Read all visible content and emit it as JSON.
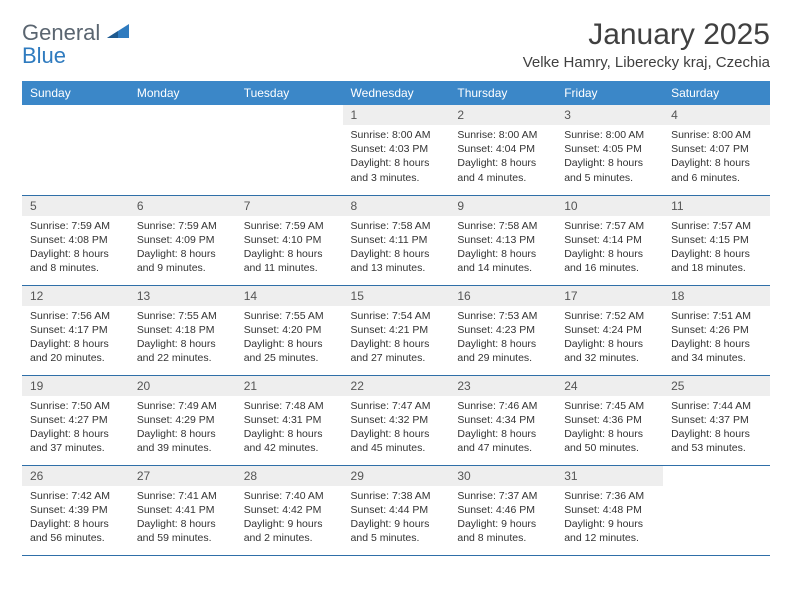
{
  "logo": {
    "word1": "General",
    "word2": "Blue",
    "color1": "#5a6570",
    "color2": "#2f7bbf"
  },
  "title": "January 2025",
  "location": "Velke Hamry, Liberecky kraj, Czechia",
  "header_bg": "#3b87c8",
  "daynum_bg": "#eeeeee",
  "border_color": "#2f6fa8",
  "weekdays": [
    "Sunday",
    "Monday",
    "Tuesday",
    "Wednesday",
    "Thursday",
    "Friday",
    "Saturday"
  ],
  "weeks": [
    [
      {
        "empty": true
      },
      {
        "empty": true
      },
      {
        "empty": true
      },
      {
        "day": "1",
        "sunrise": "Sunrise: 8:00 AM",
        "sunset": "Sunset: 4:03 PM",
        "daylight1": "Daylight: 8 hours",
        "daylight2": "and 3 minutes."
      },
      {
        "day": "2",
        "sunrise": "Sunrise: 8:00 AM",
        "sunset": "Sunset: 4:04 PM",
        "daylight1": "Daylight: 8 hours",
        "daylight2": "and 4 minutes."
      },
      {
        "day": "3",
        "sunrise": "Sunrise: 8:00 AM",
        "sunset": "Sunset: 4:05 PM",
        "daylight1": "Daylight: 8 hours",
        "daylight2": "and 5 minutes."
      },
      {
        "day": "4",
        "sunrise": "Sunrise: 8:00 AM",
        "sunset": "Sunset: 4:07 PM",
        "daylight1": "Daylight: 8 hours",
        "daylight2": "and 6 minutes."
      }
    ],
    [
      {
        "day": "5",
        "sunrise": "Sunrise: 7:59 AM",
        "sunset": "Sunset: 4:08 PM",
        "daylight1": "Daylight: 8 hours",
        "daylight2": "and 8 minutes."
      },
      {
        "day": "6",
        "sunrise": "Sunrise: 7:59 AM",
        "sunset": "Sunset: 4:09 PM",
        "daylight1": "Daylight: 8 hours",
        "daylight2": "and 9 minutes."
      },
      {
        "day": "7",
        "sunrise": "Sunrise: 7:59 AM",
        "sunset": "Sunset: 4:10 PM",
        "daylight1": "Daylight: 8 hours",
        "daylight2": "and 11 minutes."
      },
      {
        "day": "8",
        "sunrise": "Sunrise: 7:58 AM",
        "sunset": "Sunset: 4:11 PM",
        "daylight1": "Daylight: 8 hours",
        "daylight2": "and 13 minutes."
      },
      {
        "day": "9",
        "sunrise": "Sunrise: 7:58 AM",
        "sunset": "Sunset: 4:13 PM",
        "daylight1": "Daylight: 8 hours",
        "daylight2": "and 14 minutes."
      },
      {
        "day": "10",
        "sunrise": "Sunrise: 7:57 AM",
        "sunset": "Sunset: 4:14 PM",
        "daylight1": "Daylight: 8 hours",
        "daylight2": "and 16 minutes."
      },
      {
        "day": "11",
        "sunrise": "Sunrise: 7:57 AM",
        "sunset": "Sunset: 4:15 PM",
        "daylight1": "Daylight: 8 hours",
        "daylight2": "and 18 minutes."
      }
    ],
    [
      {
        "day": "12",
        "sunrise": "Sunrise: 7:56 AM",
        "sunset": "Sunset: 4:17 PM",
        "daylight1": "Daylight: 8 hours",
        "daylight2": "and 20 minutes."
      },
      {
        "day": "13",
        "sunrise": "Sunrise: 7:55 AM",
        "sunset": "Sunset: 4:18 PM",
        "daylight1": "Daylight: 8 hours",
        "daylight2": "and 22 minutes."
      },
      {
        "day": "14",
        "sunrise": "Sunrise: 7:55 AM",
        "sunset": "Sunset: 4:20 PM",
        "daylight1": "Daylight: 8 hours",
        "daylight2": "and 25 minutes."
      },
      {
        "day": "15",
        "sunrise": "Sunrise: 7:54 AM",
        "sunset": "Sunset: 4:21 PM",
        "daylight1": "Daylight: 8 hours",
        "daylight2": "and 27 minutes."
      },
      {
        "day": "16",
        "sunrise": "Sunrise: 7:53 AM",
        "sunset": "Sunset: 4:23 PM",
        "daylight1": "Daylight: 8 hours",
        "daylight2": "and 29 minutes."
      },
      {
        "day": "17",
        "sunrise": "Sunrise: 7:52 AM",
        "sunset": "Sunset: 4:24 PM",
        "daylight1": "Daylight: 8 hours",
        "daylight2": "and 32 minutes."
      },
      {
        "day": "18",
        "sunrise": "Sunrise: 7:51 AM",
        "sunset": "Sunset: 4:26 PM",
        "daylight1": "Daylight: 8 hours",
        "daylight2": "and 34 minutes."
      }
    ],
    [
      {
        "day": "19",
        "sunrise": "Sunrise: 7:50 AM",
        "sunset": "Sunset: 4:27 PM",
        "daylight1": "Daylight: 8 hours",
        "daylight2": "and 37 minutes."
      },
      {
        "day": "20",
        "sunrise": "Sunrise: 7:49 AM",
        "sunset": "Sunset: 4:29 PM",
        "daylight1": "Daylight: 8 hours",
        "daylight2": "and 39 minutes."
      },
      {
        "day": "21",
        "sunrise": "Sunrise: 7:48 AM",
        "sunset": "Sunset: 4:31 PM",
        "daylight1": "Daylight: 8 hours",
        "daylight2": "and 42 minutes."
      },
      {
        "day": "22",
        "sunrise": "Sunrise: 7:47 AM",
        "sunset": "Sunset: 4:32 PM",
        "daylight1": "Daylight: 8 hours",
        "daylight2": "and 45 minutes."
      },
      {
        "day": "23",
        "sunrise": "Sunrise: 7:46 AM",
        "sunset": "Sunset: 4:34 PM",
        "daylight1": "Daylight: 8 hours",
        "daylight2": "and 47 minutes."
      },
      {
        "day": "24",
        "sunrise": "Sunrise: 7:45 AM",
        "sunset": "Sunset: 4:36 PM",
        "daylight1": "Daylight: 8 hours",
        "daylight2": "and 50 minutes."
      },
      {
        "day": "25",
        "sunrise": "Sunrise: 7:44 AM",
        "sunset": "Sunset: 4:37 PM",
        "daylight1": "Daylight: 8 hours",
        "daylight2": "and 53 minutes."
      }
    ],
    [
      {
        "day": "26",
        "sunrise": "Sunrise: 7:42 AM",
        "sunset": "Sunset: 4:39 PM",
        "daylight1": "Daylight: 8 hours",
        "daylight2": "and 56 minutes."
      },
      {
        "day": "27",
        "sunrise": "Sunrise: 7:41 AM",
        "sunset": "Sunset: 4:41 PM",
        "daylight1": "Daylight: 8 hours",
        "daylight2": "and 59 minutes."
      },
      {
        "day": "28",
        "sunrise": "Sunrise: 7:40 AM",
        "sunset": "Sunset: 4:42 PM",
        "daylight1": "Daylight: 9 hours",
        "daylight2": "and 2 minutes."
      },
      {
        "day": "29",
        "sunrise": "Sunrise: 7:38 AM",
        "sunset": "Sunset: 4:44 PM",
        "daylight1": "Daylight: 9 hours",
        "daylight2": "and 5 minutes."
      },
      {
        "day": "30",
        "sunrise": "Sunrise: 7:37 AM",
        "sunset": "Sunset: 4:46 PM",
        "daylight1": "Daylight: 9 hours",
        "daylight2": "and 8 minutes."
      },
      {
        "day": "31",
        "sunrise": "Sunrise: 7:36 AM",
        "sunset": "Sunset: 4:48 PM",
        "daylight1": "Daylight: 9 hours",
        "daylight2": "and 12 minutes."
      },
      {
        "empty": true
      }
    ]
  ]
}
